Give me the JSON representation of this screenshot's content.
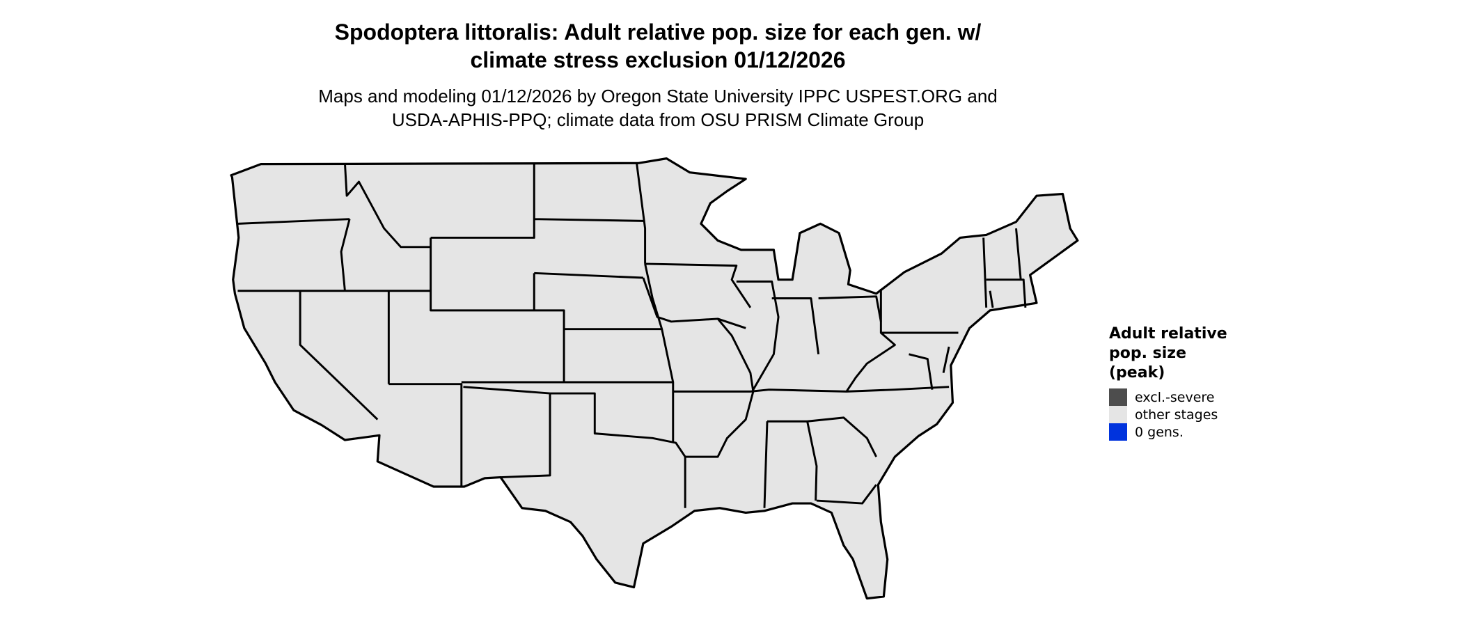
{
  "title": {
    "line1": "Spodoptera littoralis: Adult relative pop. size for each gen. w/",
    "line2": "climate stress exclusion 01/12/2026"
  },
  "subtitle": {
    "line1": "Maps and modeling 01/12/2026 by Oregon State University IPPC USPEST.ORG and",
    "line2": "USDA-APHIS-PPQ; climate data from OSU PRISM Climate Group"
  },
  "map": {
    "region": "Contiguous United States",
    "fill_color": "#e5e5e5",
    "border_color": "#000000"
  },
  "legend": {
    "title_lines": [
      "Adult relative",
      "pop. size",
      "(peak)"
    ],
    "items": [
      {
        "label": "excl.-severe",
        "color": "#4d4d4d"
      },
      {
        "label": "other stages",
        "color": "#e5e5e5"
      },
      {
        "label": "0 gens.",
        "color": "#0033dd"
      }
    ]
  }
}
